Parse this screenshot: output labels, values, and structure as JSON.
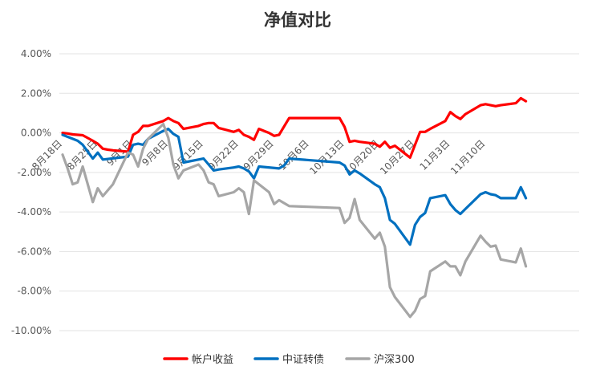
{
  "chart_data": {
    "type": "line",
    "title": "净值对比",
    "xlabel": "",
    "ylabel": "",
    "ylim": [
      -0.1,
      0.04
    ],
    "yticks": [
      0.04,
      0.02,
      0.0,
      -0.02,
      -0.04,
      -0.06,
      -0.08,
      -0.1
    ],
    "ytick_labels": [
      "4.00%",
      "2.00%",
      "0.00%",
      "-2.00%",
      "-4.00%",
      "-6.00%",
      "-8.00%",
      "-10.00%"
    ],
    "grid": true,
    "legend_position": "bottom",
    "x_start": "2020-08-18",
    "x_end": "2020-11-16",
    "x_tick_dates": [
      "2020-08-18",
      "2020-08-25",
      "2020-09-01",
      "2020-09-08",
      "2020-09-15",
      "2020-09-22",
      "2020-09-29",
      "2020-10-06",
      "2020-10-13",
      "2020-10-20",
      "2020-10-27",
      "2020-11-03",
      "2020-11-10"
    ],
    "x_tick_labels": [
      "8月18日",
      "8月25日",
      "9月1日",
      "9月8日",
      "9月15日",
      "9月22日",
      "9月29日",
      "10月6日",
      "10月13日",
      "10月20日",
      "10月27日",
      "11月3日",
      "11月10日"
    ],
    "series": [
      {
        "name": "帐户收益",
        "color": "#ff0000",
        "points": [
          [
            "2020-08-18",
            0.0
          ],
          [
            "2020-08-19",
            -0.0003
          ],
          [
            "2020-08-20",
            -0.0008
          ],
          [
            "2020-08-21",
            -0.001
          ],
          [
            "2020-08-22",
            -0.0012
          ],
          [
            "2020-08-24",
            -0.004
          ],
          [
            "2020-08-25",
            -0.0055
          ],
          [
            "2020-08-26",
            -0.008
          ],
          [
            "2020-08-27",
            -0.0085
          ],
          [
            "2020-08-28",
            -0.0088
          ],
          [
            "2020-08-31",
            -0.0095
          ],
          [
            "2020-09-01",
            -0.001
          ],
          [
            "2020-09-02",
            0.0005
          ],
          [
            "2020-09-03",
            0.0035
          ],
          [
            "2020-09-04",
            0.0035
          ],
          [
            "2020-09-07",
            0.006
          ],
          [
            "2020-09-08",
            0.0075
          ],
          [
            "2020-09-09",
            0.006
          ],
          [
            "2020-09-10",
            0.005
          ],
          [
            "2020-09-11",
            0.002
          ],
          [
            "2020-09-14",
            0.0035
          ],
          [
            "2020-09-15",
            0.0045
          ],
          [
            "2020-09-16",
            0.005
          ],
          [
            "2020-09-17",
            0.005
          ],
          [
            "2020-09-18",
            0.0025
          ],
          [
            "2020-09-21",
            0.0005
          ],
          [
            "2020-09-22",
            0.0015
          ],
          [
            "2020-09-23",
            -0.001
          ],
          [
            "2020-09-24",
            -0.002
          ],
          [
            "2020-09-25",
            -0.0035
          ],
          [
            "2020-09-26",
            0.002
          ],
          [
            "2020-09-28",
            0.0
          ],
          [
            "2020-09-29",
            -0.0015
          ],
          [
            "2020-09-30",
            -0.001
          ],
          [
            "2020-10-02",
            0.0075
          ],
          [
            "2020-10-12",
            0.0075
          ],
          [
            "2020-10-13",
            0.003
          ],
          [
            "2020-10-14",
            -0.0045
          ],
          [
            "2020-10-15",
            -0.004
          ],
          [
            "2020-10-16",
            -0.0045
          ],
          [
            "2020-10-19",
            -0.0055
          ],
          [
            "2020-10-20",
            -0.007
          ],
          [
            "2020-10-21",
            -0.0045
          ],
          [
            "2020-10-22",
            -0.0075
          ],
          [
            "2020-10-23",
            -0.0065
          ],
          [
            "2020-10-26",
            -0.0125
          ],
          [
            "2020-10-27",
            -0.006
          ],
          [
            "2020-10-28",
            0.0005
          ],
          [
            "2020-10-29",
            0.0005
          ],
          [
            "2020-10-30",
            0.002
          ],
          [
            "2020-11-02",
            0.006
          ],
          [
            "2020-11-03",
            0.0105
          ],
          [
            "2020-11-04",
            0.0085
          ],
          [
            "2020-11-05",
            0.007
          ],
          [
            "2020-11-06",
            0.0095
          ],
          [
            "2020-11-09",
            0.014
          ],
          [
            "2020-11-10",
            0.0145
          ],
          [
            "2020-11-11",
            0.014
          ],
          [
            "2020-11-12",
            0.0135
          ],
          [
            "2020-11-13",
            0.014
          ],
          [
            "2020-11-16",
            0.015
          ],
          [
            "2020-11-17",
            0.0175
          ],
          [
            "2020-11-18",
            0.016
          ]
        ]
      },
      {
        "name": "中证转债",
        "color": "#0070c0",
        "points": [
          [
            "2020-08-18",
            -0.001
          ],
          [
            "2020-08-21",
            -0.004
          ],
          [
            "2020-08-22",
            -0.006
          ],
          [
            "2020-08-24",
            -0.013
          ],
          [
            "2020-08-25",
            -0.01
          ],
          [
            "2020-08-26",
            -0.0135
          ],
          [
            "2020-08-31",
            -0.012
          ],
          [
            "2020-09-01",
            -0.006
          ],
          [
            "2020-09-02",
            -0.0055
          ],
          [
            "2020-09-03",
            -0.006
          ],
          [
            "2020-09-04",
            -0.003
          ],
          [
            "2020-09-07",
            0.001
          ],
          [
            "2020-09-08",
            0.002
          ],
          [
            "2020-09-09",
            -0.0005
          ],
          [
            "2020-09-10",
            -0.002
          ],
          [
            "2020-09-11",
            -0.015
          ],
          [
            "2020-09-14",
            -0.0135
          ],
          [
            "2020-09-15",
            -0.013
          ],
          [
            "2020-09-16",
            -0.016
          ],
          [
            "2020-09-17",
            -0.019
          ],
          [
            "2020-09-18",
            -0.0185
          ],
          [
            "2020-09-21",
            -0.0175
          ],
          [
            "2020-09-22",
            -0.017
          ],
          [
            "2020-09-23",
            -0.018
          ],
          [
            "2020-09-24",
            -0.0195
          ],
          [
            "2020-09-25",
            -0.023
          ],
          [
            "2020-09-26",
            -0.017
          ],
          [
            "2020-09-30",
            -0.018
          ],
          [
            "2020-10-01",
            -0.0165
          ],
          [
            "2020-10-02",
            -0.013
          ],
          [
            "2020-10-12",
            -0.015
          ],
          [
            "2020-10-13",
            -0.0165
          ],
          [
            "2020-10-14",
            -0.021
          ],
          [
            "2020-10-15",
            -0.019
          ],
          [
            "2020-10-16",
            -0.0205
          ],
          [
            "2020-10-19",
            -0.026
          ],
          [
            "2020-10-20",
            -0.0275
          ],
          [
            "2020-10-21",
            -0.033
          ],
          [
            "2020-10-22",
            -0.044
          ],
          [
            "2020-10-23",
            -0.046
          ],
          [
            "2020-10-26",
            -0.0565
          ],
          [
            "2020-10-27",
            -0.0465
          ],
          [
            "2020-10-28",
            -0.0425
          ],
          [
            "2020-10-29",
            -0.0405
          ],
          [
            "2020-10-30",
            -0.033
          ],
          [
            "2020-11-02",
            -0.0315
          ],
          [
            "2020-11-03",
            -0.036
          ],
          [
            "2020-11-04",
            -0.039
          ],
          [
            "2020-11-05",
            -0.041
          ],
          [
            "2020-11-06",
            -0.0385
          ],
          [
            "2020-11-09",
            -0.031
          ],
          [
            "2020-11-10",
            -0.03
          ],
          [
            "2020-11-11",
            -0.031
          ],
          [
            "2020-11-12",
            -0.0315
          ],
          [
            "2020-11-13",
            -0.033
          ],
          [
            "2020-11-16",
            -0.033
          ],
          [
            "2020-11-17",
            -0.0275
          ],
          [
            "2020-11-18",
            -0.033
          ]
        ]
      },
      {
        "name": "沪深300",
        "color": "#a6a6a6",
        "points": [
          [
            "2020-08-18",
            -0.011
          ],
          [
            "2020-08-19",
            -0.018
          ],
          [
            "2020-08-20",
            -0.026
          ],
          [
            "2020-08-21",
            -0.025
          ],
          [
            "2020-08-22",
            -0.017
          ],
          [
            "2020-08-24",
            -0.035
          ],
          [
            "2020-08-25",
            -0.028
          ],
          [
            "2020-08-26",
            -0.032
          ],
          [
            "2020-08-27",
            -0.029
          ],
          [
            "2020-08-28",
            -0.026
          ],
          [
            "2020-08-31",
            -0.01
          ],
          [
            "2020-09-01",
            -0.011
          ],
          [
            "2020-09-02",
            -0.017
          ],
          [
            "2020-09-03",
            -0.008
          ],
          [
            "2020-09-04",
            -0.003
          ],
          [
            "2020-09-07",
            0.0045
          ],
          [
            "2020-09-08",
            -0.0025
          ],
          [
            "2020-09-09",
            -0.016
          ],
          [
            "2020-09-10",
            -0.023
          ],
          [
            "2020-09-11",
            -0.019
          ],
          [
            "2020-09-14",
            -0.016
          ],
          [
            "2020-09-15",
            -0.019
          ],
          [
            "2020-09-16",
            -0.025
          ],
          [
            "2020-09-17",
            -0.026
          ],
          [
            "2020-09-18",
            -0.032
          ],
          [
            "2020-09-21",
            -0.03
          ],
          [
            "2020-09-22",
            -0.028
          ],
          [
            "2020-09-23",
            -0.03
          ],
          [
            "2020-09-24",
            -0.041
          ],
          [
            "2020-09-25",
            -0.024
          ],
          [
            "2020-09-26",
            -0.026
          ],
          [
            "2020-09-28",
            -0.03
          ],
          [
            "2020-09-29",
            -0.036
          ],
          [
            "2020-09-30",
            -0.034
          ],
          [
            "2020-10-02",
            -0.037
          ],
          [
            "2020-10-12",
            -0.038
          ],
          [
            "2020-10-13",
            -0.0455
          ],
          [
            "2020-10-14",
            -0.043
          ],
          [
            "2020-10-15",
            -0.0335
          ],
          [
            "2020-10-16",
            -0.044
          ],
          [
            "2020-10-19",
            -0.0535
          ],
          [
            "2020-10-20",
            -0.0505
          ],
          [
            "2020-10-21",
            -0.0575
          ],
          [
            "2020-10-22",
            -0.078
          ],
          [
            "2020-10-23",
            -0.083
          ],
          [
            "2020-10-26",
            -0.093
          ],
          [
            "2020-10-27",
            -0.09
          ],
          [
            "2020-10-28",
            -0.084
          ],
          [
            "2020-10-29",
            -0.0825
          ],
          [
            "2020-10-30",
            -0.07
          ],
          [
            "2020-11-02",
            -0.065
          ],
          [
            "2020-11-03",
            -0.0675
          ],
          [
            "2020-11-04",
            -0.0675
          ],
          [
            "2020-11-05",
            -0.072
          ],
          [
            "2020-11-06",
            -0.065
          ],
          [
            "2020-11-09",
            -0.052
          ],
          [
            "2020-11-10",
            -0.055
          ],
          [
            "2020-11-11",
            -0.0575
          ],
          [
            "2020-11-12",
            -0.057
          ],
          [
            "2020-11-13",
            -0.064
          ],
          [
            "2020-11-16",
            -0.0655
          ],
          [
            "2020-11-17",
            -0.0585
          ],
          [
            "2020-11-18",
            -0.0675
          ]
        ]
      }
    ]
  }
}
